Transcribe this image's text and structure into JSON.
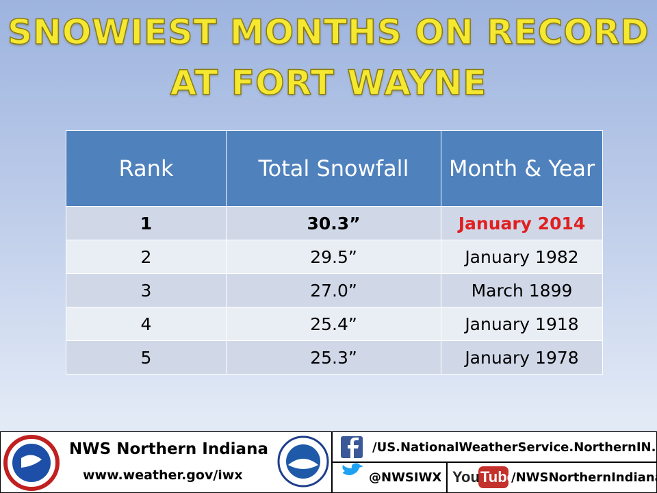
{
  "title": {
    "line1": "SNOWIEST MONTHS ON RECORD",
    "line2": "AT FORT WAYNE"
  },
  "table": {
    "header": [
      "Rank",
      "Total Snowfall",
      "Month & Year"
    ],
    "rows": [
      [
        "1",
        "30.3”",
        "January 2014"
      ],
      [
        "2",
        "29.5”",
        "January 1982"
      ],
      [
        "3",
        "27.0”",
        "March 1899"
      ],
      [
        "4",
        "25.4”",
        "January 1918"
      ],
      [
        "5",
        "25.3”",
        "January 1978"
      ]
    ]
  },
  "footer": {
    "name": "NWS Northern Indiana",
    "url": "www.weather.gov/iwx",
    "facebook": "/US.NationalWeatherService.NorthernIN.gov",
    "twitter": "@NWSIWX",
    "youtube_logo": [
      "You",
      "Tube"
    ],
    "youtube": "/NWSNorthernIndiana"
  }
}
